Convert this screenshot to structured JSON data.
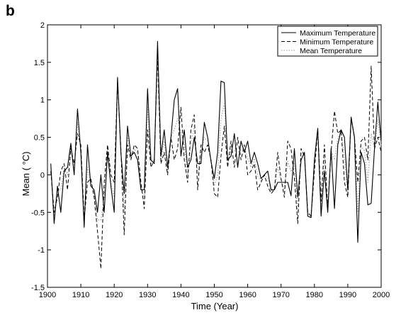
{
  "panel_label": "b",
  "chart_data": {
    "type": "line",
    "title": "",
    "xlabel": "Time (Year)",
    "ylabel": "Mean (   °C)",
    "xlim": [
      1900,
      2000
    ],
    "ylim": [
      -1.5,
      2
    ],
    "xticks": [
      1900,
      1910,
      1920,
      1930,
      1940,
      1950,
      1960,
      1970,
      1980,
      1990,
      2000
    ],
    "xtick_labels": [
      "1900",
      "1910",
      "1920",
      "1930",
      "1940",
      "1950",
      "1960",
      "1970",
      "1980",
      "1990",
      "2000"
    ],
    "yticks": [
      -1.5,
      -1,
      -0.5,
      0,
      0.5,
      1,
      1.5,
      2
    ],
    "ytick_labels": [
      "-1.5",
      "-1",
      "-0.5",
      "0",
      "0.5",
      "1",
      "1.5",
      "2"
    ],
    "grid": false,
    "legend_position": "top-right",
    "x": [
      1901,
      1902,
      1903,
      1904,
      1905,
      1906,
      1907,
      1908,
      1909,
      1910,
      1911,
      1912,
      1913,
      1914,
      1915,
      1916,
      1917,
      1918,
      1919,
      1920,
      1921,
      1922,
      1923,
      1924,
      1925,
      1926,
      1927,
      1928,
      1929,
      1930,
      1931,
      1932,
      1933,
      1934,
      1935,
      1936,
      1937,
      1938,
      1939,
      1940,
      1941,
      1942,
      1943,
      1944,
      1945,
      1946,
      1947,
      1948,
      1949,
      1950,
      1951,
      1952,
      1953,
      1954,
      1955,
      1956,
      1957,
      1958,
      1959,
      1960,
      1961,
      1962,
      1963,
      1964,
      1965,
      1966,
      1967,
      1968,
      1969,
      1970,
      1971,
      1972,
      1973,
      1974,
      1975,
      1976,
      1977,
      1978,
      1979,
      1980,
      1981,
      1982,
      1983,
      1984,
      1985,
      1986,
      1987,
      1988,
      1989,
      1990,
      1991,
      1992,
      1993,
      1994,
      1995,
      1996,
      1997,
      1998,
      1999,
      2000
    ],
    "series": [
      {
        "name": "Maximum Temperature",
        "style": "solid",
        "color": "#000000",
        "values": [
          0.15,
          -0.65,
          -0.15,
          -0.5,
          0.05,
          0.1,
          0.42,
          0.0,
          0.88,
          0.3,
          -0.7,
          0.4,
          -0.15,
          -0.2,
          -0.5,
          0.0,
          -0.5,
          0.3,
          -0.15,
          -0.5,
          1.3,
          0.3,
          -0.25,
          0.65,
          0.25,
          0.3,
          0.2,
          -0.2,
          -0.2,
          1.15,
          0.2,
          0.15,
          1.78,
          0.25,
          0.6,
          0.1,
          0.5,
          1.0,
          1.15,
          0.25,
          0.6,
          0.1,
          0.2,
          0.5,
          0.15,
          0.15,
          0.7,
          0.5,
          0.18,
          -0.05,
          0.3,
          1.25,
          1.23,
          0.2,
          0.25,
          0.55,
          0.1,
          0.45,
          0.3,
          0.45,
          0.15,
          0.3,
          0.15,
          -0.05,
          0.0,
          0.05,
          -0.2,
          -0.2,
          -0.1,
          -0.1,
          -0.1,
          -0.1,
          -0.28,
          0.35,
          -0.3,
          0.2,
          0.3,
          -0.55,
          -0.57,
          0.2,
          0.62,
          -0.55,
          0.05,
          -0.5,
          0.35,
          -0.45,
          0.4,
          0.6,
          0.5,
          -0.2,
          0.77,
          0.5,
          -0.9,
          0.3,
          0.15,
          -0.4,
          -0.38,
          0.35,
          0.97,
          0.45
        ]
      },
      {
        "name": "Minimum Temperature",
        "style": "dashed",
        "color": "#000000",
        "values": [
          0.05,
          -0.5,
          -0.3,
          0.05,
          0.15,
          -0.2,
          0.35,
          0.15,
          0.55,
          0.4,
          -0.6,
          -0.1,
          -0.05,
          -0.3,
          -0.75,
          -1.25,
          -0.1,
          0.4,
          0.0,
          -0.1,
          1.25,
          0.35,
          -0.8,
          0.4,
          0.2,
          0.4,
          0.35,
          -0.1,
          -0.45,
          0.6,
          0.1,
          0.2,
          1.6,
          0.15,
          0.3,
          0.0,
          0.5,
          0.2,
          0.35,
          0.9,
          0.2,
          -0.1,
          0.6,
          0.8,
          -0.2,
          0.4,
          0.3,
          0.4,
          0.2,
          -0.25,
          -0.3,
          0.25,
          0.65,
          0.1,
          0.45,
          0.1,
          0.5,
          0.2,
          0.4,
          0.0,
          0.05,
          0.15,
          -0.2,
          -0.1,
          0.0,
          -0.15,
          -0.25,
          -0.2,
          0.3,
          -0.05,
          -0.3,
          0.45,
          0.35,
          -0.05,
          -0.65,
          0.35,
          0.25,
          -0.5,
          -0.55,
          0.05,
          0.6,
          -0.35,
          0.4,
          -0.45,
          0.3,
          0.85,
          0.55,
          0.6,
          -0.1,
          -0.3,
          0.75,
          0.5,
          -0.1,
          0.45,
          0.5,
          0.2,
          1.45,
          0.35,
          0.5,
          0.3
        ]
      },
      {
        "name": "Mean Temperature",
        "style": "dotted",
        "color": "#aaaaaa",
        "values": [
          0.1,
          -0.55,
          -0.2,
          -0.2,
          0.1,
          0.0,
          0.38,
          0.05,
          0.7,
          0.35,
          -0.62,
          0.1,
          -0.1,
          -0.25,
          -0.6,
          -0.6,
          -0.3,
          0.35,
          -0.1,
          -0.3,
          1.28,
          0.3,
          -0.5,
          0.52,
          0.22,
          0.35,
          0.28,
          -0.15,
          -0.32,
          0.9,
          0.15,
          0.18,
          1.7,
          0.2,
          0.45,
          0.05,
          0.5,
          0.6,
          0.75,
          0.55,
          0.4,
          0.0,
          0.4,
          0.65,
          0.0,
          0.28,
          0.5,
          0.45,
          0.2,
          -0.15,
          0.0,
          0.75,
          0.95,
          0.15,
          0.35,
          0.32,
          0.3,
          0.33,
          0.35,
          0.22,
          0.1,
          0.22,
          -0.02,
          -0.08,
          0.0,
          -0.05,
          -0.22,
          -0.2,
          0.1,
          -0.08,
          -0.2,
          0.18,
          0.04,
          0.15,
          -0.48,
          0.28,
          0.28,
          -0.52,
          -0.56,
          0.12,
          0.61,
          -0.45,
          0.22,
          -0.48,
          0.32,
          0.2,
          0.48,
          0.6,
          0.2,
          -0.25,
          0.76,
          0.5,
          -0.5,
          0.38,
          0.32,
          -0.1,
          0.55,
          0.35,
          0.74,
          0.38
        ]
      }
    ]
  }
}
